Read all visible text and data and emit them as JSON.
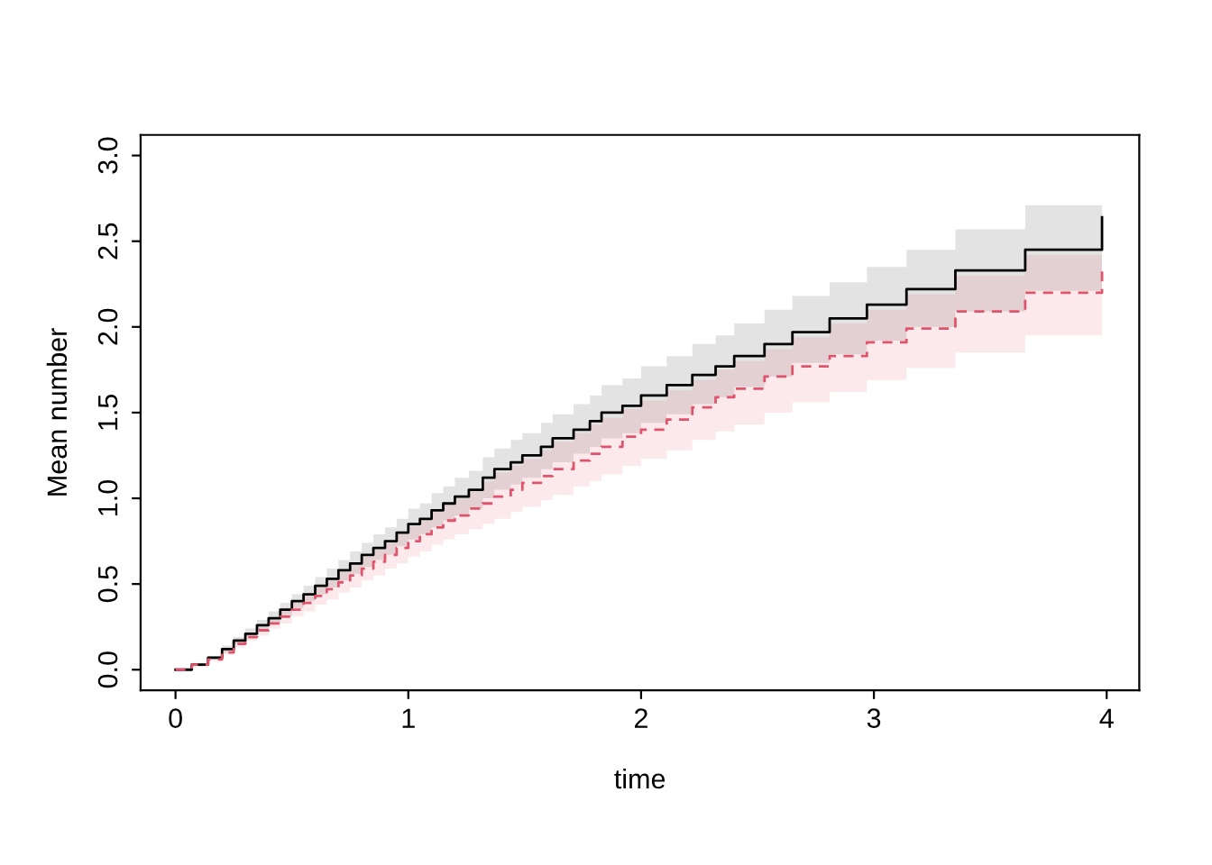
{
  "chart_data": {
    "type": "step",
    "xlabel": "time",
    "ylabel": "Mean number",
    "xlim": [
      -0.15,
      4.14
    ],
    "ylim": [
      -0.12,
      3.12
    ],
    "xticks": [
      0,
      1,
      2,
      3,
      4
    ],
    "yticks": [
      {
        "value": 0,
        "label": "0.0"
      },
      0.5,
      {
        "value": 1,
        "label": "1.0"
      },
      1.5,
      {
        "value": 2,
        "label": "2.0"
      },
      2.5,
      {
        "value": 3,
        "label": "3.0"
      }
    ],
    "x": [
      0,
      0.07,
      0.14,
      0.2,
      0.25,
      0.3,
      0.35,
      0.4,
      0.45,
      0.5,
      0.55,
      0.6,
      0.65,
      0.7,
      0.75,
      0.8,
      0.85,
      0.9,
      0.95,
      1.0,
      1.05,
      1.1,
      1.15,
      1.2,
      1.26,
      1.32,
      1.37,
      1.44,
      1.49,
      1.57,
      1.62,
      1.71,
      1.78,
      1.83,
      1.92,
      2.0,
      2.11,
      2.22,
      2.32,
      2.4,
      2.53,
      2.65,
      2.81,
      2.97,
      3.14,
      3.35,
      3.65,
      3.98
    ],
    "series": [
      {
        "color": "#000000",
        "line_style": "solid",
        "values": [
          0,
          0.03,
          0.07,
          0.12,
          0.17,
          0.21,
          0.26,
          0.3,
          0.35,
          0.4,
          0.44,
          0.49,
          0.53,
          0.58,
          0.62,
          0.67,
          0.71,
          0.75,
          0.8,
          0.85,
          0.88,
          0.93,
          0.97,
          1.01,
          1.05,
          1.12,
          1.17,
          1.21,
          1.25,
          1.3,
          1.35,
          1.4,
          1.45,
          1.5,
          1.54,
          1.6,
          1.66,
          1.72,
          1.77,
          1.83,
          1.9,
          1.97,
          2.05,
          2.13,
          2.22,
          2.33,
          2.45,
          2.64
        ],
        "upper": [
          0,
          0.04,
          0.08,
          0.14,
          0.19,
          0.24,
          0.29,
          0.34,
          0.39,
          0.44,
          0.49,
          0.54,
          0.59,
          0.64,
          0.69,
          0.74,
          0.79,
          0.83,
          0.88,
          0.94,
          0.97,
          1.03,
          1.07,
          1.12,
          1.16,
          1.24,
          1.29,
          1.34,
          1.38,
          1.44,
          1.49,
          1.55,
          1.6,
          1.66,
          1.7,
          1.77,
          1.83,
          1.9,
          1.95,
          2.02,
          2.1,
          2.18,
          2.26,
          2.35,
          2.45,
          2.57,
          2.71,
          2.71
        ],
        "lower": [
          0,
          0.02,
          0.06,
          0.1,
          0.15,
          0.19,
          0.23,
          0.27,
          0.31,
          0.36,
          0.4,
          0.44,
          0.48,
          0.52,
          0.56,
          0.6,
          0.64,
          0.67,
          0.72,
          0.76,
          0.79,
          0.83,
          0.87,
          0.9,
          0.94,
          1.0,
          1.05,
          1.08,
          1.12,
          1.17,
          1.21,
          1.26,
          1.3,
          1.35,
          1.38,
          1.44,
          1.49,
          1.55,
          1.59,
          1.65,
          1.71,
          1.79,
          1.84,
          1.92,
          2.0,
          2.09,
          2.21,
          2.21
        ]
      },
      {
        "color": "#df536b",
        "line_style": "dashed",
        "values": [
          0,
          0.03,
          0.06,
          0.1,
          0.15,
          0.19,
          0.23,
          0.27,
          0.31,
          0.35,
          0.39,
          0.43,
          0.47,
          0.51,
          0.55,
          0.59,
          0.63,
          0.67,
          0.71,
          0.75,
          0.79,
          0.83,
          0.87,
          0.9,
          0.94,
          0.97,
          1.01,
          1.05,
          1.09,
          1.13,
          1.17,
          1.22,
          1.26,
          1.3,
          1.36,
          1.4,
          1.46,
          1.53,
          1.59,
          1.64,
          1.71,
          1.77,
          1.83,
          1.91,
          1.99,
          2.09,
          2.2,
          2.35
        ],
        "upper": [
          0,
          0.03,
          0.07,
          0.12,
          0.17,
          0.21,
          0.26,
          0.3,
          0.35,
          0.39,
          0.44,
          0.48,
          0.53,
          0.57,
          0.62,
          0.66,
          0.7,
          0.75,
          0.79,
          0.84,
          0.87,
          0.92,
          0.96,
          1.0,
          1.04,
          1.1,
          1.15,
          1.19,
          1.23,
          1.28,
          1.33,
          1.38,
          1.43,
          1.47,
          1.52,
          1.57,
          1.63,
          1.69,
          1.75,
          1.8,
          1.87,
          1.94,
          2.02,
          2.1,
          2.19,
          2.3,
          2.42,
          2.42
        ],
        "lower": [
          0,
          0.02,
          0.05,
          0.09,
          0.13,
          0.17,
          0.2,
          0.24,
          0.27,
          0.31,
          0.34,
          0.38,
          0.41,
          0.45,
          0.48,
          0.52,
          0.55,
          0.59,
          0.62,
          0.66,
          0.69,
          0.73,
          0.76,
          0.79,
          0.82,
          0.85,
          0.88,
          0.92,
          0.95,
          0.99,
          1.02,
          1.07,
          1.1,
          1.14,
          1.19,
          1.23,
          1.28,
          1.34,
          1.39,
          1.43,
          1.5,
          1.56,
          1.62,
          1.69,
          1.76,
          1.85,
          1.95,
          1.95
        ]
      }
    ],
    "grid": false,
    "legend": false
  }
}
